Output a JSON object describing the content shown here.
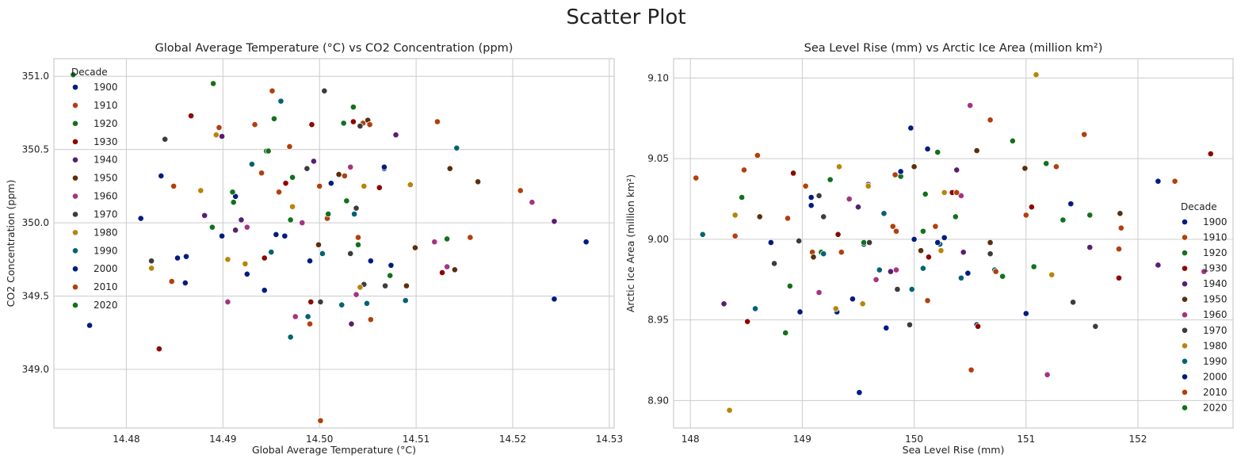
{
  "figure": {
    "suptitle": "Scatter Plot"
  },
  "palette": [
    "#001c7f",
    "#b1400d",
    "#12711c",
    "#8c0800",
    "#591e71",
    "#592f0d",
    "#a23582",
    "#3c3c3c",
    "#b8850a",
    "#006374",
    "#001c7f",
    "#b1400d",
    "#12711c"
  ],
  "chart_data": [
    {
      "type": "scatter",
      "title": "Global Average Temperature (°C) vs CO2 Concentration (ppm)",
      "xlabel": "Global Average Temperature (°C)",
      "ylabel": "CO2 Concentration (ppm)",
      "xlim": [
        14.4725,
        14.5305
      ],
      "ylim": [
        348.6,
        351.12
      ],
      "xticks": [
        "14.48",
        "14.49",
        "14.50",
        "14.51",
        "14.52",
        "14.53"
      ],
      "yticks": [
        "349.0",
        "349.5",
        "350.0",
        "350.5",
        "351.0"
      ],
      "grid": true,
      "legend": {
        "title": "Decade",
        "position": "upper-left"
      },
      "series": [
        {
          "name": "1900",
          "x": [
            14.4762,
            14.4815,
            14.4836,
            14.4862,
            14.4861,
            14.4899,
            14.4913,
            14.4943,
            14.5012,
            14.5067,
            14.5053,
            14.5074,
            14.5243,
            14.5276
          ],
          "y": [
            349.3,
            350.03,
            350.32,
            349.77,
            349.59,
            349.91,
            350.18,
            349.54,
            350.27,
            350.37,
            349.74,
            349.71,
            349.48,
            349.87
          ]
        },
        {
          "name": "1910",
          "x": [
            14.4849,
            14.4847,
            14.4896,
            14.4933,
            14.4951,
            14.4969,
            14.499,
            14.5008,
            14.5026,
            14.5045,
            14.5053,
            14.5122,
            14.5156,
            14.5208,
            14.5001
          ],
          "y": [
            350.25,
            349.6,
            350.65,
            350.67,
            350.9,
            350.52,
            349.31,
            350.03,
            350.32,
            350.68,
            349.34,
            350.69,
            349.9,
            350.22,
            348.65
          ]
        },
        {
          "name": "1920",
          "x": [
            14.4745,
            14.4889,
            14.491,
            14.4945,
            14.4953,
            14.497,
            14.5009,
            14.5025,
            14.5035,
            14.5073,
            14.5132,
            14.4911
          ],
          "y": [
            351.01,
            349.97,
            350.21,
            350.49,
            350.71,
            350.02,
            350.06,
            350.68,
            350.79,
            349.64,
            349.89,
            350.14
          ]
        },
        {
          "name": "1930",
          "x": [
            14.4834,
            14.4867,
            14.4943,
            14.4965,
            14.4992,
            14.4991,
            14.5035,
            14.5062,
            14.5127
          ],
          "y": [
            349.14,
            350.73,
            349.76,
            350.27,
            350.67,
            349.46,
            350.69,
            350.24,
            349.66
          ]
        },
        {
          "name": "1940",
          "x": [
            14.4881,
            14.4899,
            14.4919,
            14.4913,
            14.4994,
            14.5033,
            14.5079,
            14.5243
          ],
          "y": [
            350.05,
            350.59,
            350.02,
            349.95,
            350.42,
            349.31,
            350.6,
            350.01
          ]
        },
        {
          "name": "1950",
          "x": [
            14.4999,
            14.502,
            14.505,
            14.509,
            14.5099,
            14.5135,
            14.514,
            14.5164
          ],
          "y": [
            349.85,
            350.33,
            350.7,
            349.57,
            349.83,
            350.37,
            349.68,
            350.28
          ]
        },
        {
          "name": "1960",
          "x": [
            14.4905,
            14.4925,
            14.4982,
            14.4975,
            14.5032,
            14.5038,
            14.5119,
            14.5132,
            14.522
          ],
          "y": [
            349.46,
            349.97,
            350.0,
            349.36,
            350.38,
            349.51,
            349.87,
            349.7,
            350.14
          ]
        },
        {
          "name": "1970",
          "x": [
            14.4826,
            14.484,
            14.4987,
            14.5005,
            14.5001,
            14.5032,
            14.5038,
            14.5042,
            14.5046,
            14.5068
          ],
          "y": [
            349.74,
            350.57,
            350.37,
            350.9,
            349.46,
            349.79,
            350.1,
            350.66,
            349.58,
            349.57
          ]
        },
        {
          "name": "1980",
          "x": [
            14.4826,
            14.4877,
            14.4893,
            14.4905,
            14.4923,
            14.4972,
            14.5042,
            14.5046,
            14.5094
          ],
          "y": [
            349.69,
            350.22,
            350.6,
            349.75,
            349.72,
            350.11,
            349.56,
            350.25,
            350.26
          ]
        },
        {
          "name": "1990",
          "x": [
            14.493,
            14.495,
            14.496,
            14.497,
            14.4988,
            14.5003,
            14.5023,
            14.5036,
            14.5049,
            14.5089,
            14.5142
          ],
          "y": [
            350.4,
            349.8,
            350.83,
            349.22,
            349.36,
            349.79,
            349.44,
            350.06,
            349.45,
            349.47,
            350.51
          ]
        },
        {
          "name": "2000",
          "x": [
            14.4853,
            14.4925,
            14.4955,
            14.4964,
            14.499,
            14.5067
          ],
          "y": [
            349.76,
            349.65,
            349.92,
            349.91,
            349.74,
            350.38
          ]
        },
        {
          "name": "2010",
          "x": [
            14.494,
            14.4958,
            14.5,
            14.504,
            14.5052
          ],
          "y": [
            350.34,
            350.21,
            350.25,
            349.9,
            350.67
          ]
        },
        {
          "name": "2020",
          "x": [
            14.489,
            14.4947,
            14.4972,
            14.5028,
            14.504
          ],
          "y": [
            350.95,
            350.49,
            350.31,
            350.15,
            349.85
          ]
        }
      ]
    },
    {
      "type": "scatter",
      "title": "Sea Level Rise (mm) vs Arctic Ice Area (million km²)",
      "xlabel": "Sea Level Rise (mm)",
      "ylabel": "Arctic Ice Area (million km²)",
      "xlim": [
        147.85,
        152.85
      ],
      "ylim": [
        8.883,
        9.112
      ],
      "xticks": [
        "148",
        "149",
        "150",
        "151",
        "152"
      ],
      "yticks": [
        "8.90",
        "8.95",
        "9.00",
        "9.05",
        "9.10"
      ],
      "grid": true,
      "legend": {
        "title": "Decade",
        "position": "lower-right"
      },
      "series": [
        {
          "name": "1900",
          "x": [
            148.72,
            149.08,
            149.31,
            149.51,
            149.55,
            149.75,
            149.97,
            150.12,
            150.27,
            150.48,
            150.56,
            151.0,
            151.4,
            152.18
          ],
          "y": [
            8.998,
            9.021,
            8.955,
            8.905,
            8.997,
            8.945,
            9.069,
            9.056,
            9.001,
            8.979,
            8.947,
            8.954,
            9.022,
            9.036
          ]
        },
        {
          "name": "1910",
          "x": [
            148.05,
            148.48,
            148.6,
            148.87,
            149.03,
            149.09,
            149.35,
            149.81,
            149.84,
            150.12,
            150.51,
            150.68,
            151.0,
            151.27,
            151.52,
            151.83,
            152.33,
            148.4
          ],
          "y": [
            9.038,
            9.043,
            9.052,
            9.013,
            9.033,
            8.992,
            8.992,
            9.008,
            9.005,
            8.962,
            8.919,
            9.074,
            9.015,
            9.045,
            9.065,
            8.994,
            9.036,
            9.002
          ]
        },
        {
          "name": "1920",
          "x": [
            148.46,
            148.85,
            149.17,
            149.55,
            149.88,
            150.1,
            150.21,
            150.37,
            150.88,
            151.07,
            151.18,
            151.57
          ],
          "y": [
            9.026,
            8.942,
            8.992,
            8.998,
            9.039,
            9.028,
            9.054,
            9.014,
            9.061,
            8.983,
            9.047,
            9.015
          ]
        },
        {
          "name": "1930",
          "x": [
            148.51,
            148.92,
            149.32,
            150.13,
            150.34,
            150.57,
            151.05,
            151.83,
            152.65
          ],
          "y": [
            8.949,
            9.041,
            9.003,
            8.989,
            9.029,
            8.946,
            9.02,
            8.976,
            9.053
          ]
        },
        {
          "name": "1940",
          "x": [
            148.3,
            149.5,
            149.59,
            149.79,
            150.38,
            150.44,
            151.57,
            152.18
          ],
          "y": [
            8.96,
            9.02,
            9.034,
            8.98,
            9.043,
            8.992,
            8.995,
            8.984
          ]
        },
        {
          "name": "1950",
          "x": [
            148.62,
            149.1,
            150.0,
            150.06,
            150.56,
            150.68,
            150.99,
            151.84
          ],
          "y": [
            9.014,
            8.989,
            9.045,
            8.993,
            9.055,
            8.998,
            9.044,
            9.016
          ]
        },
        {
          "name": "1960",
          "x": [
            149.15,
            149.42,
            149.66,
            149.84,
            150.42,
            150.5,
            151.19,
            152.59
          ],
          "y": [
            8.967,
            9.025,
            8.975,
            8.981,
            9.027,
            9.083,
            8.916,
            8.98
          ]
        },
        {
          "name": "1970",
          "x": [
            148.75,
            148.97,
            149.15,
            149.19,
            149.6,
            149.85,
            149.96,
            150.68,
            151.42,
            151.62
          ],
          "y": [
            8.985,
            8.999,
            9.027,
            9.014,
            8.998,
            8.969,
            8.947,
            8.991,
            8.961,
            8.946
          ]
        },
        {
          "name": "1980",
          "x": [
            148.35,
            148.4,
            149.3,
            149.33,
            149.54,
            149.59,
            150.24,
            150.27,
            151.09,
            151.23
          ],
          "y": [
            8.894,
            9.015,
            8.957,
            9.045,
            8.96,
            9.033,
            8.993,
            9.029,
            9.102,
            8.978
          ]
        },
        {
          "name": "1990",
          "x": [
            148.11,
            148.58,
            149.19,
            149.69,
            149.73,
            149.98,
            150.08,
            150.23,
            150.42,
            150.72
          ],
          "y": [
            9.003,
            8.957,
            8.991,
            8.981,
            9.016,
            8.969,
            8.982,
            8.997,
            8.976,
            8.981
          ]
        },
        {
          "name": "2000",
          "x": [
            148.98,
            149.08,
            149.45,
            149.88,
            150.0,
            150.21
          ],
          "y": [
            8.955,
            9.026,
            8.963,
            9.042,
            9.0,
            8.998
          ]
        },
        {
          "name": "2010",
          "x": [
            149.83,
            150.19,
            150.38,
            150.73,
            151.85
          ],
          "y": [
            9.04,
            9.008,
            9.029,
            8.98,
            9.007
          ]
        },
        {
          "name": "2020",
          "x": [
            148.89,
            149.25,
            150.08,
            150.79,
            151.33
          ],
          "y": [
            8.971,
            9.037,
            9.005,
            8.977,
            9.012
          ]
        }
      ]
    }
  ]
}
